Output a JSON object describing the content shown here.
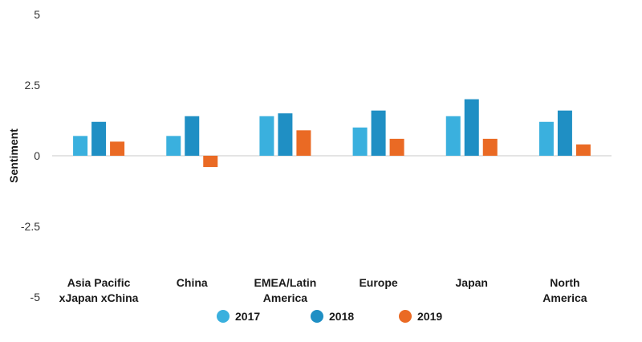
{
  "chart_data": {
    "type": "bar",
    "categories": [
      [
        "Asia Pacific",
        "xJapan xChina"
      ],
      [
        "China"
      ],
      [
        "EMEA/Latin",
        "America"
      ],
      [
        "Europe"
      ],
      [
        "Japan"
      ],
      [
        "North",
        "America"
      ]
    ],
    "series": [
      {
        "name": "2017",
        "color": "#3ab0de",
        "values": [
          0.7,
          0.7,
          1.4,
          1.0,
          1.4,
          1.2
        ]
      },
      {
        "name": "2018",
        "color": "#1f8fc4",
        "values": [
          1.2,
          1.4,
          1.5,
          1.6,
          2.0,
          1.6
        ]
      },
      {
        "name": "2019",
        "color": "#ea6a24",
        "values": [
          0.5,
          -0.4,
          0.9,
          0.6,
          0.6,
          0.4
        ]
      }
    ],
    "ylabel": "Sentiment",
    "yticks": [
      "5",
      "2.5",
      "0",
      "-2.5",
      "-5"
    ],
    "ytick_values": [
      5,
      2.5,
      0,
      -2.5,
      -5
    ],
    "ylim": [
      -5,
      5
    ],
    "grid": false,
    "legend_position": "bottom"
  }
}
